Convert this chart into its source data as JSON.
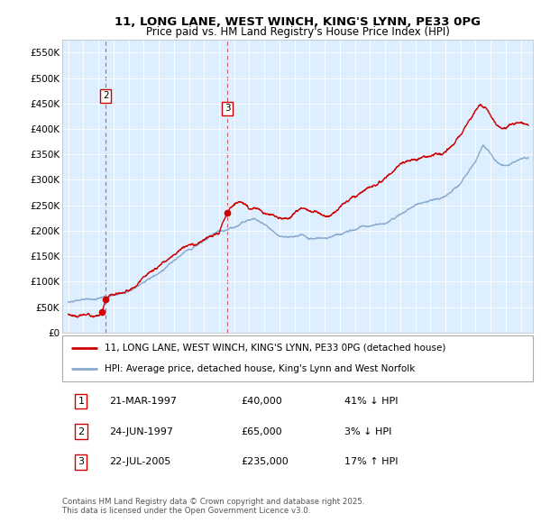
{
  "title_line1": "11, LONG LANE, WEST WINCH, KING'S LYNN, PE33 0PG",
  "title_line2": "Price paid vs. HM Land Registry's House Price Index (HPI)",
  "background_color": "#ffffff",
  "plot_bg_color": "#ddeeff",
  "red_line_color": "#cc0000",
  "blue_line_color": "#88aacc",
  "legend_line1": "11, LONG LANE, WEST WINCH, KING'S LYNN, PE33 0PG (detached house)",
  "legend_line2": "HPI: Average price, detached house, King's Lynn and West Norfolk",
  "transactions": [
    {
      "label": "1",
      "date": "21-MAR-1997",
      "price": 40000,
      "hpi_diff": "41% ↓ HPI",
      "x": 1997.22,
      "show_vline": false
    },
    {
      "label": "2",
      "date": "24-JUN-1997",
      "price": 65000,
      "hpi_diff": "3% ↓ HPI",
      "x": 1997.48,
      "show_vline": true
    },
    {
      "label": "3",
      "date": "22-JUL-2005",
      "price": 235000,
      "hpi_diff": "17% ↑ HPI",
      "x": 2005.56,
      "show_vline": true
    }
  ],
  "footer": "Contains HM Land Registry data © Crown copyright and database right 2025.\nThis data is licensed under the Open Government Licence v3.0.",
  "ylim": [
    0,
    575000
  ],
  "yticks": [
    0,
    50000,
    100000,
    150000,
    200000,
    250000,
    300000,
    350000,
    400000,
    450000,
    500000,
    550000
  ],
  "ytick_labels": [
    "£0",
    "£50K",
    "£100K",
    "£150K",
    "£200K",
    "£250K",
    "£300K",
    "£350K",
    "£400K",
    "£450K",
    "£500K",
    "£550K"
  ],
  "xlim": [
    1994.6,
    2025.8
  ],
  "xticks": [
    1995,
    1996,
    1997,
    1998,
    1999,
    2000,
    2001,
    2002,
    2003,
    2004,
    2005,
    2006,
    2007,
    2008,
    2009,
    2010,
    2011,
    2012,
    2013,
    2014,
    2015,
    2016,
    2017,
    2018,
    2019,
    2020,
    2021,
    2022,
    2023,
    2024,
    2025
  ],
  "hpi_base_points": [
    [
      1995.0,
      60000
    ],
    [
      1996.0,
      62000
    ],
    [
      1997.0,
      63500
    ],
    [
      1998.0,
      68000
    ],
    [
      1999.0,
      78000
    ],
    [
      2000.0,
      92000
    ],
    [
      2001.0,
      108000
    ],
    [
      2002.0,
      135000
    ],
    [
      2003.0,
      158000
    ],
    [
      2004.0,
      178000
    ],
    [
      2005.0,
      190000
    ],
    [
      2006.0,
      200000
    ],
    [
      2007.0,
      218000
    ],
    [
      2007.5,
      222000
    ],
    [
      2008.0,
      215000
    ],
    [
      2008.5,
      205000
    ],
    [
      2009.0,
      195000
    ],
    [
      2009.5,
      192000
    ],
    [
      2010.0,
      195000
    ],
    [
      2010.5,
      197000
    ],
    [
      2011.0,
      193000
    ],
    [
      2012.0,
      190000
    ],
    [
      2013.0,
      195000
    ],
    [
      2014.0,
      202000
    ],
    [
      2015.0,
      210000
    ],
    [
      2016.0,
      218000
    ],
    [
      2017.0,
      235000
    ],
    [
      2018.0,
      248000
    ],
    [
      2019.0,
      255000
    ],
    [
      2020.0,
      265000
    ],
    [
      2021.0,
      295000
    ],
    [
      2022.0,
      340000
    ],
    [
      2022.5,
      375000
    ],
    [
      2023.0,
      360000
    ],
    [
      2023.5,
      345000
    ],
    [
      2024.0,
      340000
    ],
    [
      2024.5,
      348000
    ],
    [
      2025.5,
      355000
    ]
  ],
  "prop_base_points": [
    [
      1995.0,
      36000
    ],
    [
      1995.5,
      34000
    ],
    [
      1996.0,
      35000
    ],
    [
      1996.5,
      36000
    ],
    [
      1997.0,
      37000
    ],
    [
      1997.22,
      40000
    ],
    [
      1997.48,
      65000
    ],
    [
      1997.8,
      70000
    ],
    [
      1998.0,
      72000
    ],
    [
      1998.5,
      76000
    ],
    [
      1999.0,
      82000
    ],
    [
      1999.5,
      92000
    ],
    [
      2000.0,
      100000
    ],
    [
      2000.5,
      112000
    ],
    [
      2001.0,
      122000
    ],
    [
      2001.5,
      135000
    ],
    [
      2002.0,
      148000
    ],
    [
      2002.5,
      162000
    ],
    [
      2003.0,
      168000
    ],
    [
      2003.5,
      172000
    ],
    [
      2004.0,
      178000
    ],
    [
      2004.5,
      185000
    ],
    [
      2005.0,
      192000
    ],
    [
      2005.56,
      235000
    ],
    [
      2006.0,
      252000
    ],
    [
      2006.5,
      258000
    ],
    [
      2007.0,
      248000
    ],
    [
      2007.5,
      252000
    ],
    [
      2008.0,
      245000
    ],
    [
      2008.5,
      238000
    ],
    [
      2009.0,
      232000
    ],
    [
      2009.5,
      228000
    ],
    [
      2010.0,
      238000
    ],
    [
      2010.5,
      245000
    ],
    [
      2011.0,
      242000
    ],
    [
      2011.5,
      238000
    ],
    [
      2012.0,
      235000
    ],
    [
      2012.5,
      240000
    ],
    [
      2013.0,
      248000
    ],
    [
      2013.5,
      258000
    ],
    [
      2014.0,
      268000
    ],
    [
      2014.5,
      278000
    ],
    [
      2015.0,
      285000
    ],
    [
      2015.5,
      295000
    ],
    [
      2016.0,
      310000
    ],
    [
      2016.5,
      320000
    ],
    [
      2017.0,
      335000
    ],
    [
      2017.5,
      345000
    ],
    [
      2018.0,
      352000
    ],
    [
      2018.5,
      355000
    ],
    [
      2019.0,
      348000
    ],
    [
      2019.5,
      352000
    ],
    [
      2020.0,
      360000
    ],
    [
      2020.5,
      372000
    ],
    [
      2021.0,
      390000
    ],
    [
      2021.5,
      415000
    ],
    [
      2022.0,
      442000
    ],
    [
      2022.3,
      452000
    ],
    [
      2022.5,
      448000
    ],
    [
      2022.8,
      438000
    ],
    [
      2023.0,
      425000
    ],
    [
      2023.3,
      415000
    ],
    [
      2023.5,
      408000
    ],
    [
      2024.0,
      400000
    ],
    [
      2024.5,
      412000
    ],
    [
      2025.0,
      418000
    ],
    [
      2025.5,
      415000
    ]
  ]
}
